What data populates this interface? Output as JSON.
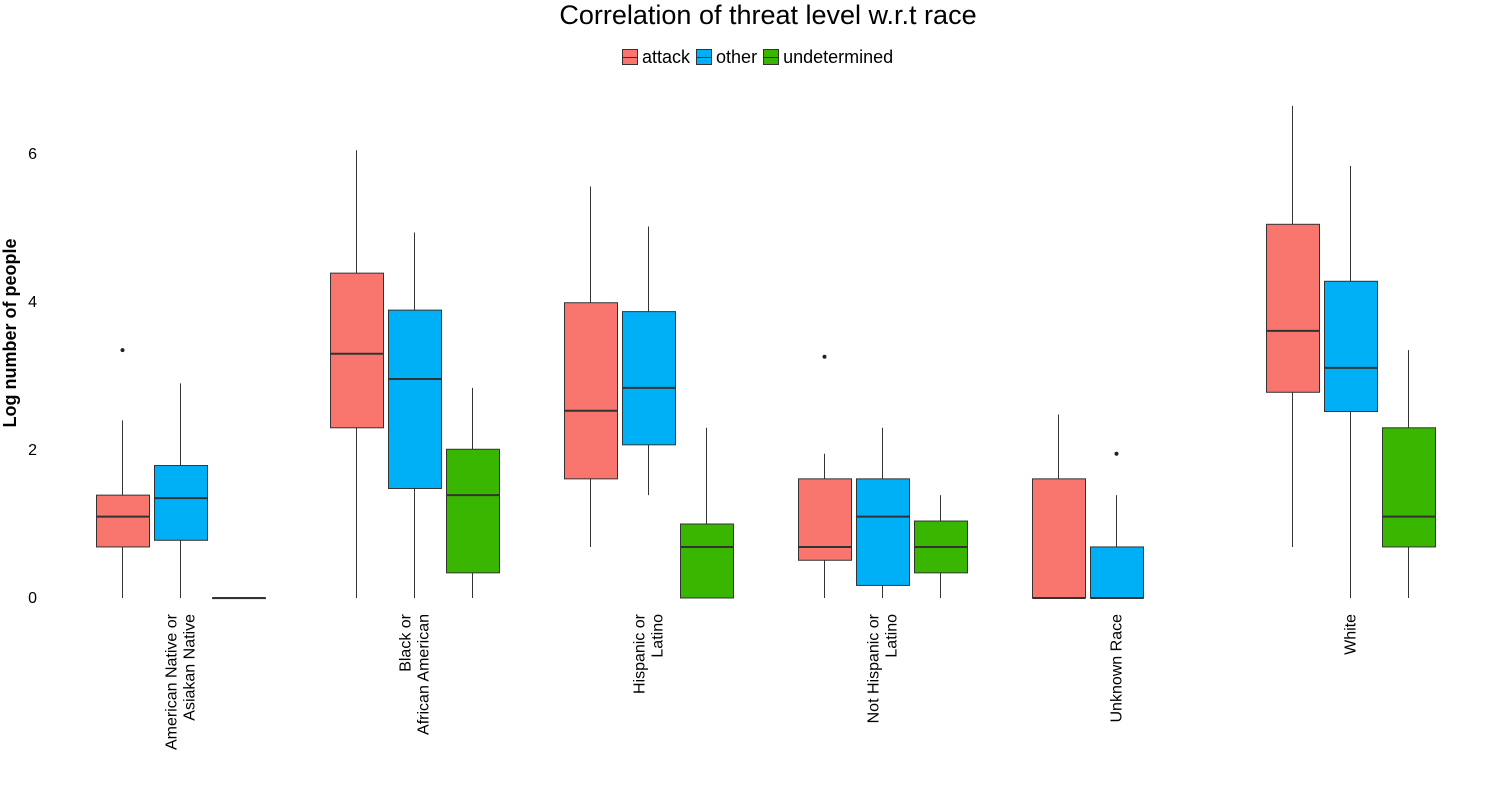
{
  "chart_data": {
    "type": "boxplot",
    "title": "Correlation of threat level w.r.t race",
    "xlabel": "",
    "ylabel": "Log number of people",
    "ylim": [
      0,
      6.7
    ],
    "y_ticks": [
      0,
      2,
      4,
      6
    ],
    "grid": false,
    "legend_position": "top",
    "categories": [
      [
        "American Native or",
        "Asiakan Native"
      ],
      [
        "Black or",
        "African American"
      ],
      [
        "Hispanic or",
        "Latino"
      ],
      [
        "Not Hispanic or",
        "Latino"
      ],
      [
        "Unknown Race"
      ],
      [
        "White"
      ]
    ],
    "series": [
      {
        "name": "attack",
        "color": "#F8766D",
        "boxes": [
          {
            "whisker_low": 0,
            "q1": 0.69,
            "median": 1.1,
            "q3": 1.39,
            "whisker_high": 2.4,
            "outliers": [
              3.35
            ]
          },
          {
            "whisker_low": 0,
            "q1": 2.3,
            "median": 3.3,
            "q3": 4.39,
            "whisker_high": 6.05,
            "outliers": []
          },
          {
            "whisker_low": 0.69,
            "q1": 1.61,
            "median": 2.53,
            "q3": 3.99,
            "whisker_high": 5.56,
            "outliers": []
          },
          {
            "whisker_low": 0,
            "q1": 0.51,
            "median": 0.69,
            "q3": 1.61,
            "whisker_high": 1.95,
            "outliers": [
              3.26
            ]
          },
          {
            "whisker_low": 0,
            "q1": 0,
            "median": 0,
            "q3": 1.61,
            "whisker_high": 2.48,
            "outliers": []
          },
          {
            "whisker_low": 0.69,
            "q1": 2.78,
            "median": 3.61,
            "q3": 5.05,
            "whisker_high": 6.65,
            "outliers": []
          }
        ]
      },
      {
        "name": "other",
        "color": "#00B0F6",
        "boxes": [
          {
            "whisker_low": 0,
            "q1": 0.78,
            "median": 1.35,
            "q3": 1.79,
            "whisker_high": 2.9,
            "outliers": []
          },
          {
            "whisker_low": 0,
            "q1": 1.48,
            "median": 2.96,
            "q3": 3.89,
            "whisker_high": 4.94,
            "outliers": []
          },
          {
            "whisker_low": 1.39,
            "q1": 2.07,
            "median": 2.84,
            "q3": 3.87,
            "whisker_high": 5.02,
            "outliers": []
          },
          {
            "whisker_low": 0,
            "q1": 0.17,
            "median": 1.1,
            "q3": 1.61,
            "whisker_high": 2.3,
            "outliers": []
          },
          {
            "whisker_low": 0,
            "q1": 0,
            "median": 0,
            "q3": 0.69,
            "whisker_high": 1.39,
            "outliers": [
              1.95
            ]
          },
          {
            "whisker_low": 0,
            "q1": 2.52,
            "median": 3.11,
            "q3": 4.28,
            "whisker_high": 5.84,
            "outliers": []
          }
        ]
      },
      {
        "name": "undetermined",
        "color": "#39B600",
        "boxes": [
          {
            "whisker_low": 0,
            "q1": 0,
            "median": 0,
            "q3": 0,
            "whisker_high": 0,
            "outliers": []
          },
          {
            "whisker_low": 0,
            "q1": 0.34,
            "median": 1.39,
            "q3": 2.01,
            "whisker_high": 2.84,
            "outliers": []
          },
          {
            "whisker_low": 0,
            "q1": 0,
            "median": 0.69,
            "q3": 1.0,
            "whisker_high": 2.3,
            "outliers": []
          },
          {
            "whisker_low": 0,
            "q1": 0.34,
            "median": 0.69,
            "q3": 1.04,
            "whisker_high": 1.39,
            "outliers": []
          },
          null,
          {
            "whisker_low": 0,
            "q1": 0.69,
            "median": 1.1,
            "q3": 2.3,
            "whisker_high": 3.35,
            "outliers": []
          }
        ]
      }
    ]
  }
}
